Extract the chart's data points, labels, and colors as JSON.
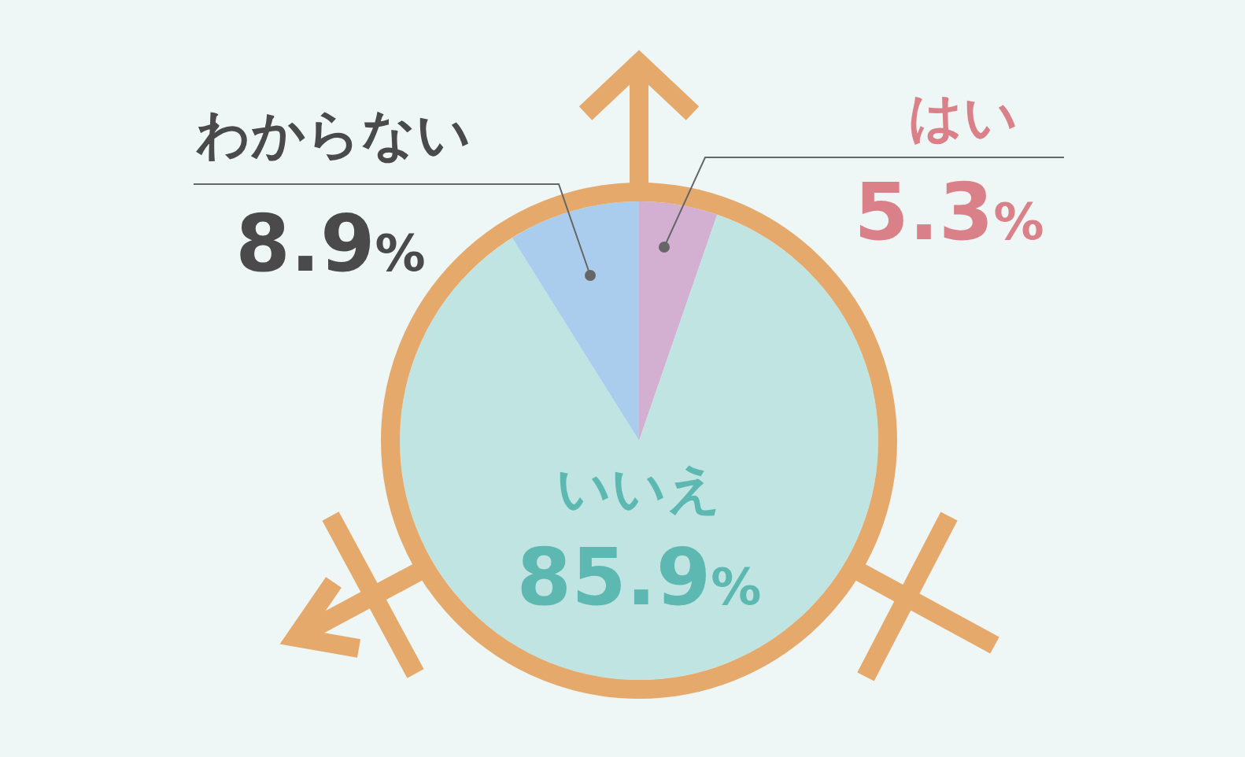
{
  "chart_data": {
    "type": "pie",
    "categories": [
      "はい",
      "いいえ",
      "わからない"
    ],
    "values": [
      5.3,
      85.9,
      8.9
    ],
    "colors": [
      "#d3afd2",
      "#bfe4e1",
      "#aacdee"
    ],
    "value_labels": [
      "5.3%",
      "85.9%",
      "8.9%"
    ]
  }
}
